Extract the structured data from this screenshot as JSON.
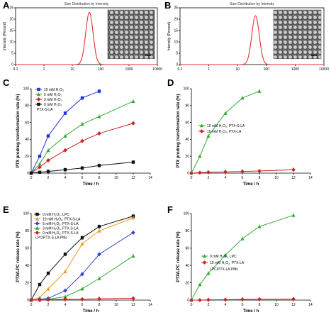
{
  "chart_data": [
    {
      "id": "A",
      "type": "line",
      "title": "Size Distribution by Intensity",
      "xlabel": "",
      "ylabel": "Intensity (Percent)",
      "xscale": "log",
      "xlim": [
        0.1,
        10000
      ],
      "ylim": [
        0,
        25
      ],
      "xticks": [
        "0.1",
        "1",
        "10",
        "100",
        "1000",
        "10000"
      ],
      "yticks": [
        "0",
        "5",
        "10",
        "15",
        "20",
        "25"
      ],
      "peak": {
        "center": 40,
        "height": 23
      },
      "color": "#e03030",
      "inset": "TEM image of micelles"
    },
    {
      "id": "B",
      "type": "line",
      "title": "Size Distribution by Intensity",
      "xlabel": "",
      "ylabel": "Intensity (Percent)",
      "xscale": "log",
      "xlim": [
        0.1,
        10000
      ],
      "ylim": [
        0,
        25
      ],
      "xticks": [
        "0.1",
        "1",
        "10",
        "100",
        "1000",
        "10000"
      ],
      "yticks": [
        "0",
        "5",
        "10",
        "15",
        "20",
        "25"
      ],
      "peak": {
        "center": 42,
        "height": 21.5
      },
      "color": "#e03030",
      "inset": "TEM image of micelles"
    },
    {
      "id": "C",
      "type": "line",
      "xlabel": "Time / h",
      "ylabel": "PTX prodrug transformation rate (%)",
      "xlim": [
        0,
        14
      ],
      "ylim": [
        0,
        100
      ],
      "xticks": [
        0,
        2,
        4,
        6,
        8,
        10,
        12,
        14
      ],
      "yticks": [
        0,
        20,
        40,
        60,
        80,
        100
      ],
      "annotation": "PTX-S-LA",
      "series": [
        {
          "name": "10  mM H₂O₂",
          "color": "#2233dd",
          "marker": "square",
          "x": [
            0,
            1,
            2,
            4,
            6,
            8
          ],
          "y": [
            0,
            20,
            44,
            71,
            89,
            97
          ]
        },
        {
          "name": "5  mM H₂O₂",
          "color": "#33aa33",
          "marker": "triangle",
          "x": [
            0,
            1,
            2,
            4,
            6,
            8,
            12
          ],
          "y": [
            0,
            11,
            27,
            44,
            58,
            67,
            85
          ]
        },
        {
          "name": "3  mM H₂O₂",
          "color": "#cc2222",
          "marker": "diamond",
          "x": [
            0,
            1,
            2,
            4,
            6,
            8,
            12
          ],
          "y": [
            0,
            7,
            15,
            27,
            38,
            47,
            59
          ]
        },
        {
          "name": "0  mM H₂O₂",
          "color": "#111111",
          "marker": "square",
          "x": [
            0,
            1,
            2,
            4,
            6,
            8,
            12
          ],
          "y": [
            0,
            1,
            2,
            4,
            6,
            9,
            13
          ]
        }
      ]
    },
    {
      "id": "D",
      "type": "line",
      "xlabel": "Time / h",
      "ylabel": "PTX prodrug transformation rate (%)",
      "xlim": [
        0,
        14
      ],
      "ylim": [
        0,
        100
      ],
      "xticks": [
        0,
        2,
        4,
        6,
        8,
        10,
        12,
        14
      ],
      "yticks": [
        0,
        20,
        40,
        60,
        80,
        100
      ],
      "series": [
        {
          "name": "10 mM H₂O₂, PTX-S-LA",
          "color": "#33aa33",
          "marker": "triangle",
          "x": [
            0,
            1,
            2,
            4,
            6,
            8
          ],
          "y": [
            0,
            20,
            44,
            71,
            89,
            97
          ]
        },
        {
          "name": "10 mM H₂O₂, PTX-LA",
          "color": "#cc2222",
          "marker": "diamond",
          "x": [
            0,
            1,
            2,
            4,
            6,
            8,
            12
          ],
          "y": [
            0,
            0.5,
            1,
            1.5,
            2,
            2.5,
            4
          ]
        }
      ]
    },
    {
      "id": "E",
      "type": "line",
      "xlabel": "Time / h",
      "ylabel": "PTX/LPC release rate (%)",
      "xlim": [
        0,
        14
      ],
      "ylim": [
        0,
        100
      ],
      "xticks": [
        0,
        2,
        4,
        6,
        8,
        10,
        12,
        14
      ],
      "yticks": [
        0,
        20,
        40,
        60,
        80,
        100
      ],
      "annotation": "LPC/PTX-S-LA PMs",
      "series": [
        {
          "name": "0 mM H₂O₂, LPC",
          "color": "#111111",
          "marker": "square",
          "x": [
            0,
            1,
            2,
            4,
            6,
            8,
            12
          ],
          "y": [
            0,
            18,
            31,
            53,
            72,
            85,
            97
          ]
        },
        {
          "name": "10 mM H₂O₂, PTX-S-LA",
          "color": "#ee9922",
          "marker": "triangle",
          "x": [
            0,
            1,
            2,
            4,
            6,
            8,
            12
          ],
          "y": [
            0,
            3,
            13,
            33,
            65,
            80,
            95
          ]
        },
        {
          "name": "5 mM H₂O₂, PTX-S-LA",
          "color": "#3344cc",
          "marker": "diamond",
          "x": [
            0,
            1,
            2,
            4,
            6,
            8,
            12
          ],
          "y": [
            0,
            1,
            2,
            11,
            30,
            53,
            78
          ]
        },
        {
          "name": "3 mM H₂O₂, PTX-S-LA",
          "color": "#33aa33",
          "marker": "triangle",
          "x": [
            0,
            1,
            2,
            4,
            6,
            8,
            12
          ],
          "y": [
            0,
            0.5,
            1,
            4,
            13,
            25,
            51
          ]
        },
        {
          "name": "0 mM H₂O₂, PTX-S-LA",
          "color": "#cc2222",
          "marker": "diamond",
          "x": [
            0,
            1,
            2,
            4,
            6,
            8,
            12
          ],
          "y": [
            0,
            0,
            0.5,
            1,
            1,
            1.5,
            2
          ]
        }
      ]
    },
    {
      "id": "F",
      "type": "line",
      "xlabel": "Time / h",
      "ylabel": "PTX/LPC release rate (%)",
      "xlim": [
        0,
        14
      ],
      "ylim": [
        0,
        100
      ],
      "xticks": [
        0,
        2,
        4,
        6,
        8,
        10,
        12,
        14
      ],
      "yticks": [
        0,
        20,
        40,
        60,
        80,
        100
      ],
      "annotation": "LPC/PTX-LA PMs",
      "series": [
        {
          "name": "0 mM H₂O₂, LPC",
          "color": "#33aa33",
          "marker": "triangle",
          "x": [
            0,
            1,
            2,
            4,
            6,
            8,
            12
          ],
          "y": [
            0,
            18,
            31,
            52,
            71,
            85,
            98
          ]
        },
        {
          "name": "10 mM H₂O₂, PTX-LA",
          "color": "#cc2222",
          "marker": "diamond",
          "x": [
            0,
            1,
            2,
            4,
            6,
            8,
            12
          ],
          "y": [
            0,
            0,
            0.3,
            0.5,
            0.8,
            1,
            1.2
          ]
        }
      ]
    }
  ]
}
